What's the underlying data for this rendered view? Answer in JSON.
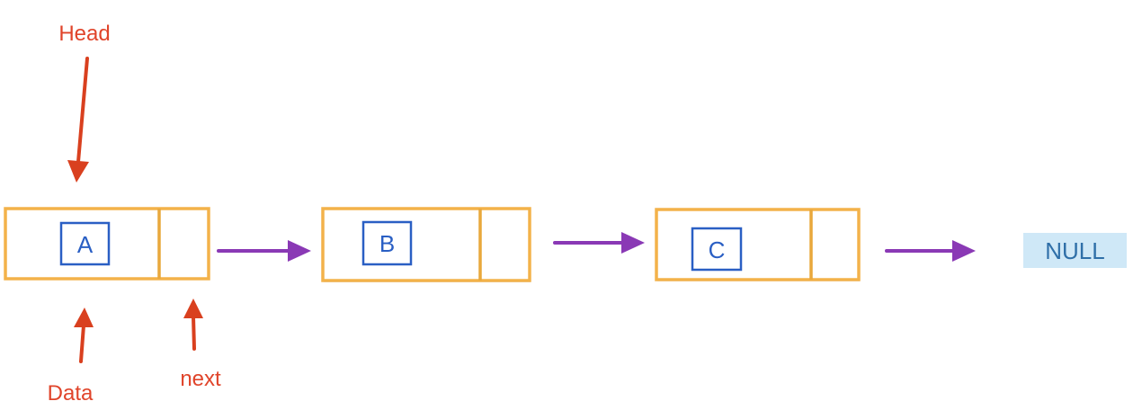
{
  "diagram": {
    "head_label": "Head",
    "data_label": "Data",
    "next_label": "next",
    "nodes": [
      {
        "value": "A"
      },
      {
        "value": "B"
      },
      {
        "value": "C"
      }
    ],
    "null_label": "NULL"
  },
  "colors": {
    "node_border": "#f3b24a",
    "data_box_border": "#2a5fc4",
    "pointer_arrows": "#d9401f",
    "link_arrows": "#8a39b5",
    "null_background": "#cfe8f7"
  }
}
